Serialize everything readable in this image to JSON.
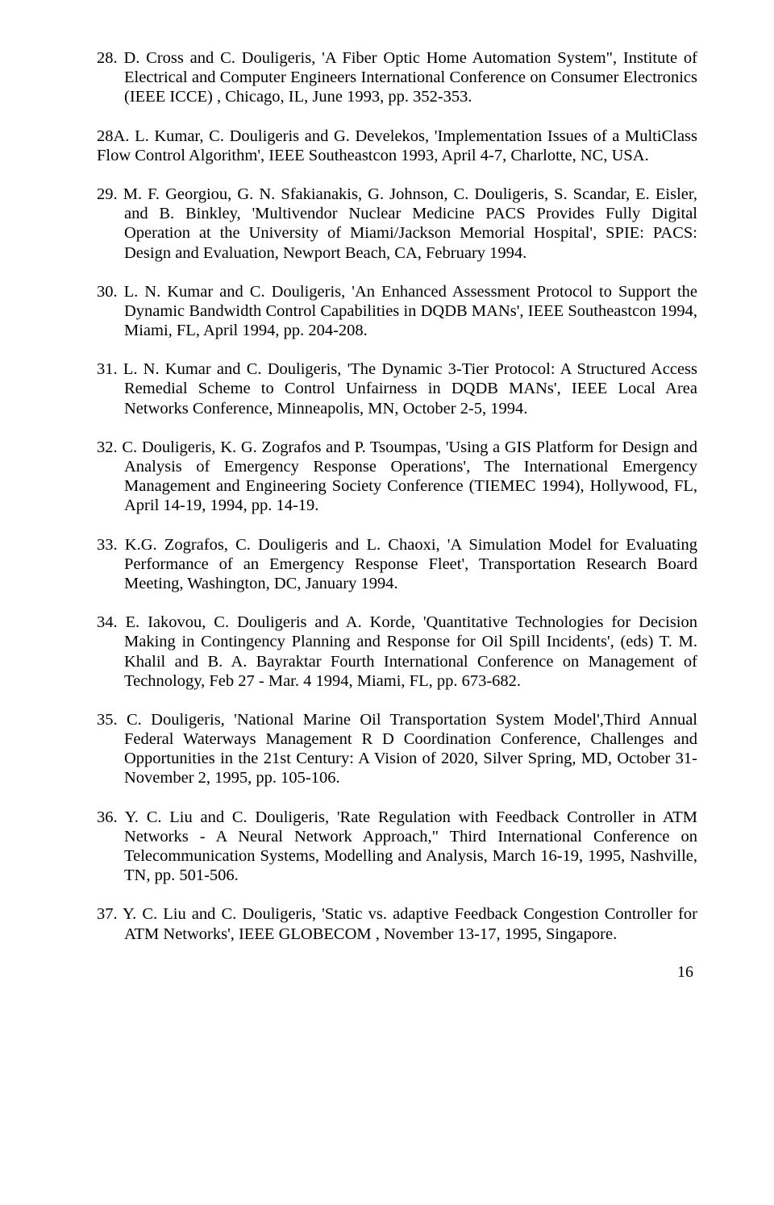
{
  "typography": {
    "font_family": "Times New Roman",
    "body_fontsize_pt": 15,
    "line_height": 1.18,
    "text_color": "#000000",
    "background_color": "#ffffff",
    "alignment": "justify"
  },
  "page_number": "16",
  "references": [
    {
      "num": "28.",
      "text": "D. Cross and C. Douligeris, 'A Fiber Optic Home Automation System\",  Institute of Electrical and Computer Engineers  International Conference on Consumer Electronics (IEEE ICCE) , Chicago, IL, June  1993, pp.  352-353."
    },
    {
      "num": "28A.",
      "text": "L. Kumar, C. Douligeris and G. Develekos, 'Implementation Issues of a MultiClass Flow Control Algorithm', IEEE Southeastcon 1993, April 4-7, Charlotte, NC, USA."
    },
    {
      "num": "29.",
      "text": "M. F. Georgiou, G. N. Sfakianakis, G. Johnson, C. Douligeris, S. Scandar, E. Eisler, and B. Binkley,  'Multivendor Nuclear Medicine PACS  Provides Fully Digital Operation at the University of Miami/Jackson Memorial Hospital',   SPIE: PACS: Design and Evaluation,  Newport Beach, CA, February 1994."
    },
    {
      "num": "30.",
      "text": "L. N. Kumar and C. Douligeris, 'An Enhanced Assessment Protocol to Support the Dynamic Bandwidth Control Capabilities in DQDB MANs', IEEE Southeastcon 1994, Miami, FL, April 1994, pp. 204-208."
    },
    {
      "num": "31.",
      "text": "L. N. Kumar and C. Douligeris, 'The Dynamic 3-Tier Protocol: A Structured Access Remedial Scheme to Control Unfairness in DQDB MANs', IEEE Local Area Networks Conference,  Minneapolis, MN, October 2-5, 1994."
    },
    {
      "num": "32.",
      "text": "C. Douligeris, K. G.  Zografos and P. Tsoumpas, 'Using a GIS Platform for Design and Analysis of Emergency Response Operations', The International Emergency Management and Engineering Society Conference (TIEMEC 1994), Hollywood, FL, April 14-19, 1994, pp. 14-19."
    },
    {
      "num": "33.",
      "text": " K.G. Zografos, C. Douligeris and L. Chaoxi, 'A Simulation  Model for Evaluating Performance of an Emergency Response Fleet', Transportation Research Board Meeting,  Washington, DC, January 1994."
    },
    {
      "num": "34.",
      "text": "E. Iakovou, C. Douligeris and A. Korde, 'Quantitative Technologies for Decision Making in Contingency Planning and Response for Oil Spill Incidents', (eds) T. M. Khalil and B. A. Bayraktar   Fourth International Conference on Management of Technology,  Feb 27 - Mar. 4 1994, Miami, FL, pp. 673-682."
    },
    {
      "num": "35.",
      "text": "C. Douligeris, 'National Marine Oil Transportation System Model',Third Annual Federal Waterways Management R D Coordination  Conference, Challenges and Opportunities in the 21st Century: A Vision of 2020,  Silver Spring, MD, October 31-November 2, 1995, pp. 105-106."
    },
    {
      "num": "36.",
      "text": "Y. C. Liu and C. Douligeris, 'Rate Regulation with Feedback Controller in ATM Networks - A Neural Network Approach,\"  Third International Conference on Telecommunication Systems, Modelling and Analysis,  March 16-19,  1995, Nashville, TN, pp. 501-506."
    },
    {
      "num": "37.",
      "text": "Y. C. Liu and C. Douligeris, 'Static vs. adaptive Feedback Congestion Controller for ATM Networks',   IEEE GLOBECOM , November  13-17, 1995, Singapore."
    }
  ]
}
